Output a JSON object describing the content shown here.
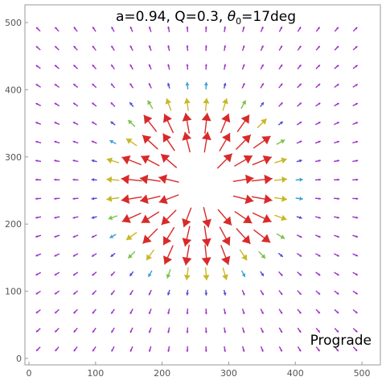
{
  "chart_data": {
    "type": "vector-field",
    "title": "a=0.94, Q=0.3, θ₀=17deg",
    "title_parts": {
      "prefix": "a=0.94, Q=0.3, ",
      "symbol": "θ",
      "subscript": "0",
      "suffix": "=17deg"
    },
    "annotation": "Prograde",
    "xlim": [
      0,
      512
    ],
    "ylim": [
      0,
      512
    ],
    "x_ticks": [
      0,
      100,
      200,
      300,
      400,
      500
    ],
    "y_ticks": [
      0,
      100,
      200,
      300,
      400,
      500
    ],
    "grid": false,
    "field_center": [
      255,
      255
    ],
    "grid_spacing": 28,
    "arrow_colors": {
      "weak": "#9b30c8",
      "low": "#4a4ad8",
      "mid_low": "#3aa0d8",
      "mid": "#7ac24a",
      "mid_high": "#c8b828",
      "strong": "#d82a2a"
    }
  }
}
